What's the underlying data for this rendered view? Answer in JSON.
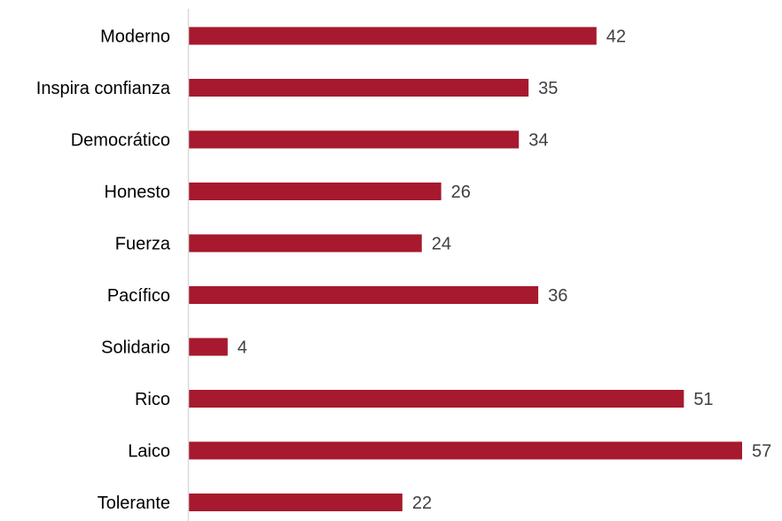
{
  "chart_data": {
    "type": "bar",
    "orientation": "horizontal",
    "categories": [
      "Moderno",
      "Inspira confianza",
      "Democrático",
      "Honesto",
      "Fuerza",
      "Pacífico",
      "Solidario",
      "Rico",
      "Laico",
      "Tolerante"
    ],
    "values": [
      42,
      35,
      34,
      26,
      24,
      36,
      4,
      51,
      57,
      22
    ],
    "title": "",
    "xlabel": "",
    "ylabel": "",
    "xlim": [
      0,
      57
    ],
    "grid": false,
    "legend": "none",
    "bar_color": "#A6192E",
    "axis_color": "#D9D9D9"
  }
}
